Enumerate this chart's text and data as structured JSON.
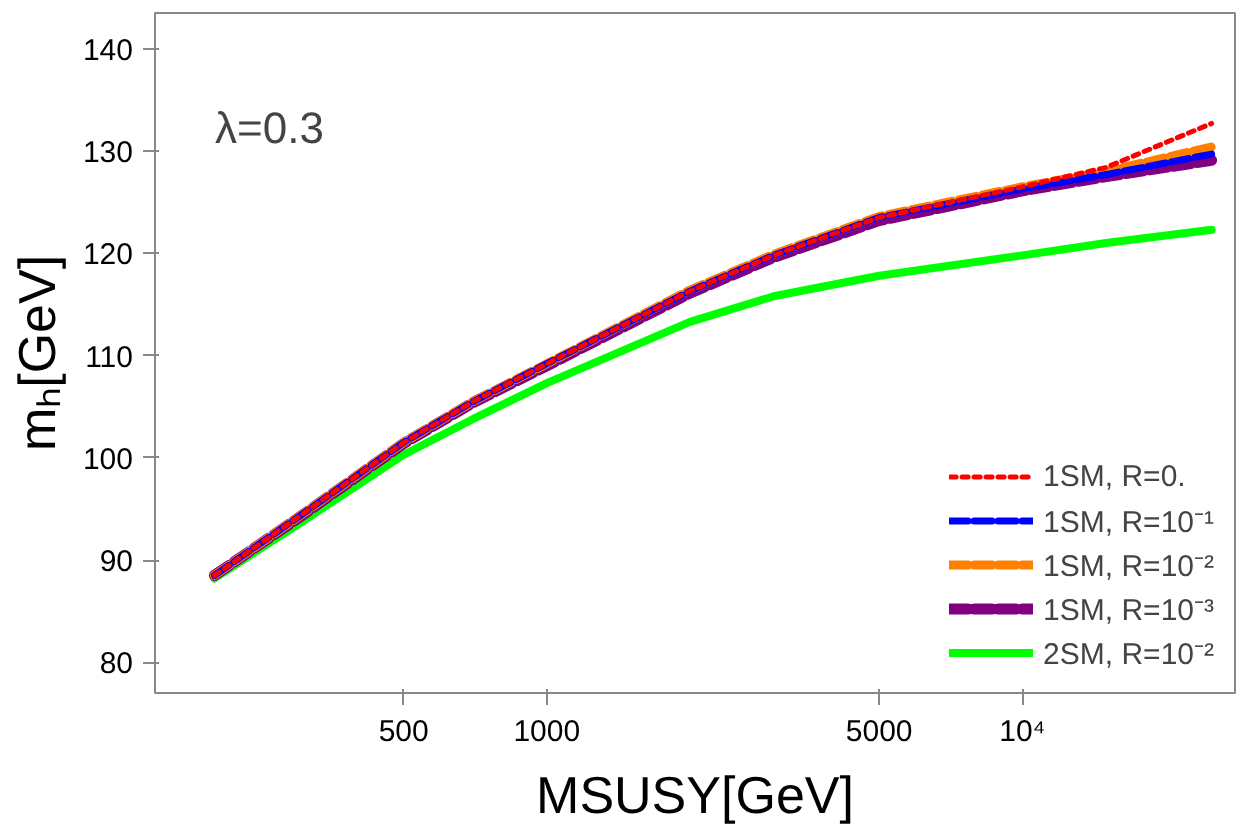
{
  "chart_data": {
    "type": "line",
    "xlabel": "MSUSY[GeV]",
    "ylabel": "mₕ[GeV]",
    "annotations": [
      "λ=0.3"
    ],
    "log": "x",
    "grid": false,
    "legend": "bottom right",
    "xlim": [
      150,
      28000
    ],
    "ylim": [
      77,
      143.5
    ],
    "xticks": [
      500,
      1000,
      5000,
      {
        "value": 10000,
        "label": "10⁴"
      }
    ],
    "yticks": [
      80,
      90,
      100,
      110,
      120,
      130,
      140
    ],
    "x": [
      200,
      300,
      500,
      700,
      1000,
      2000,
      3000,
      5000,
      10000,
      15000,
      25000
    ],
    "series": [
      {
        "name": "1SM, R=0.",
        "color": "#ff0000",
        "line_style": "dotted",
        "values": [
          88.5,
          94.2,
          101.5,
          105.5,
          109.2,
          116.3,
          119.8,
          123.5,
          126.5,
          128.4,
          132.7
        ]
      },
      {
        "name": "1SM, R=10⁻¹",
        "color": "#0000ff",
        "line_style": "dashed",
        "values": [
          88.5,
          94.2,
          101.5,
          105.5,
          109.2,
          116.3,
          119.8,
          123.5,
          126.3,
          127.7,
          129.7
        ]
      },
      {
        "name": "1SM, R=10⁻²",
        "color": "#ff8000",
        "line_style": "dashed",
        "values": [
          88.5,
          94.2,
          101.5,
          105.5,
          109.2,
          116.4,
          119.9,
          123.6,
          126.5,
          128.0,
          130.4
        ]
      },
      {
        "name": "1SM, R=10⁻³",
        "color": "#800080",
        "line_style": "dashed",
        "values": [
          88.5,
          94.1,
          101.4,
          105.4,
          109.0,
          116.1,
          119.6,
          123.2,
          126.1,
          127.5,
          129.1
        ]
      },
      {
        "name": "2SM, R=10⁻²",
        "color": "#00ff00",
        "line_style": "solid",
        "values": [
          88.2,
          93.5,
          100.3,
          103.8,
          107.3,
          113.3,
          115.8,
          117.8,
          119.8,
          121.0,
          122.3
        ]
      }
    ]
  }
}
